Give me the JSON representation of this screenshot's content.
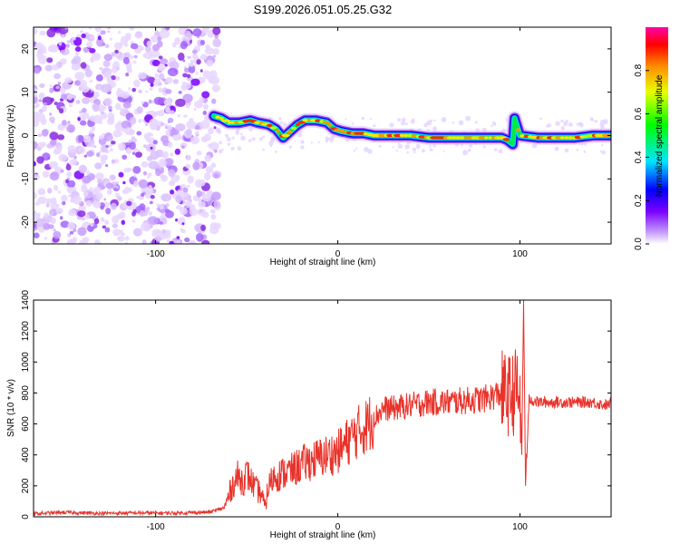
{
  "title": "S199.2026.051.05.25.G32",
  "chart_data": [
    {
      "type": "heatmap",
      "name": "spectrogram",
      "xlabel": "Height of straight line (km)",
      "ylabel": "Frequency (Hz)",
      "xlim": [
        -167,
        150
      ],
      "ylim": [
        -25,
        25
      ],
      "xticks": [
        -100,
        0,
        100
      ],
      "yticks": [
        -20,
        -10,
        0,
        10,
        20
      ],
      "noise_region": {
        "x_from": -167,
        "x_to": -68,
        "y_from": -25,
        "y_to": 25
      },
      "ridge": {
        "x": [
          -68,
          -64,
          -60,
          -54,
          -48,
          -44,
          -38,
          -34,
          -30,
          -26,
          -22,
          -18,
          -12,
          -6,
          -2,
          2,
          8,
          14,
          20,
          30,
          40,
          50,
          60,
          70,
          80,
          90,
          93,
          96,
          97,
          100,
          110,
          120,
          130,
          140,
          150
        ],
        "y": [
          4.5,
          4,
          3,
          3,
          3.5,
          3,
          2.5,
          1.5,
          -0.5,
          1,
          2.5,
          3.5,
          3.5,
          3,
          1.5,
          1,
          0.5,
          0.5,
          0,
          0,
          0,
          -0.5,
          -0.5,
          -0.5,
          -0.5,
          -0.5,
          -1,
          -2,
          4,
          0,
          -0.5,
          -0.5,
          -0.5,
          0,
          0
        ]
      },
      "colorbar": {
        "label": "Normalized spectral amplitude",
        "ticks": [
          "0.0",
          "0.2",
          "0.4",
          "0.6",
          "0.8"
        ],
        "tick_values": [
          0,
          0.2,
          0.4,
          0.6,
          0.8
        ],
        "range": [
          0,
          1
        ]
      }
    },
    {
      "type": "line",
      "name": "snr",
      "xlabel": "Height of straight line (km)",
      "ylabel": "SNR (10 * v/v)",
      "xlim": [
        -167,
        150
      ],
      "ylim": [
        0,
        1400
      ],
      "xticks": [
        -100,
        0,
        100
      ],
      "yticks": [
        0,
        200,
        400,
        600,
        800,
        1000,
        1200,
        1400
      ],
      "color": "#e8332b",
      "series": [
        {
          "name": "SNR",
          "x": [
            -167,
            -150,
            -130,
            -110,
            -90,
            -70,
            -62,
            -58,
            -55,
            -52,
            -50,
            -48,
            -45,
            -42,
            -40,
            -38,
            -35,
            -30,
            -25,
            -20,
            -15,
            -10,
            -5,
            0,
            5,
            10,
            15,
            20,
            25,
            30,
            40,
            50,
            60,
            70,
            80,
            85,
            90,
            95,
            98,
            100,
            101,
            102,
            103,
            105,
            110,
            120,
            130,
            140,
            148,
            150
          ],
          "y": [
            20,
            28,
            22,
            25,
            24,
            30,
            60,
            200,
            260,
            230,
            280,
            240,
            180,
            150,
            60,
            200,
            260,
            280,
            300,
            340,
            360,
            380,
            400,
            420,
            480,
            540,
            580,
            640,
            700,
            700,
            720,
            740,
            740,
            750,
            760,
            780,
            800,
            780,
            820,
            760,
            400,
            1400,
            200,
            760,
            740,
            740,
            740,
            740,
            720,
            740
          ]
        }
      ]
    }
  ]
}
